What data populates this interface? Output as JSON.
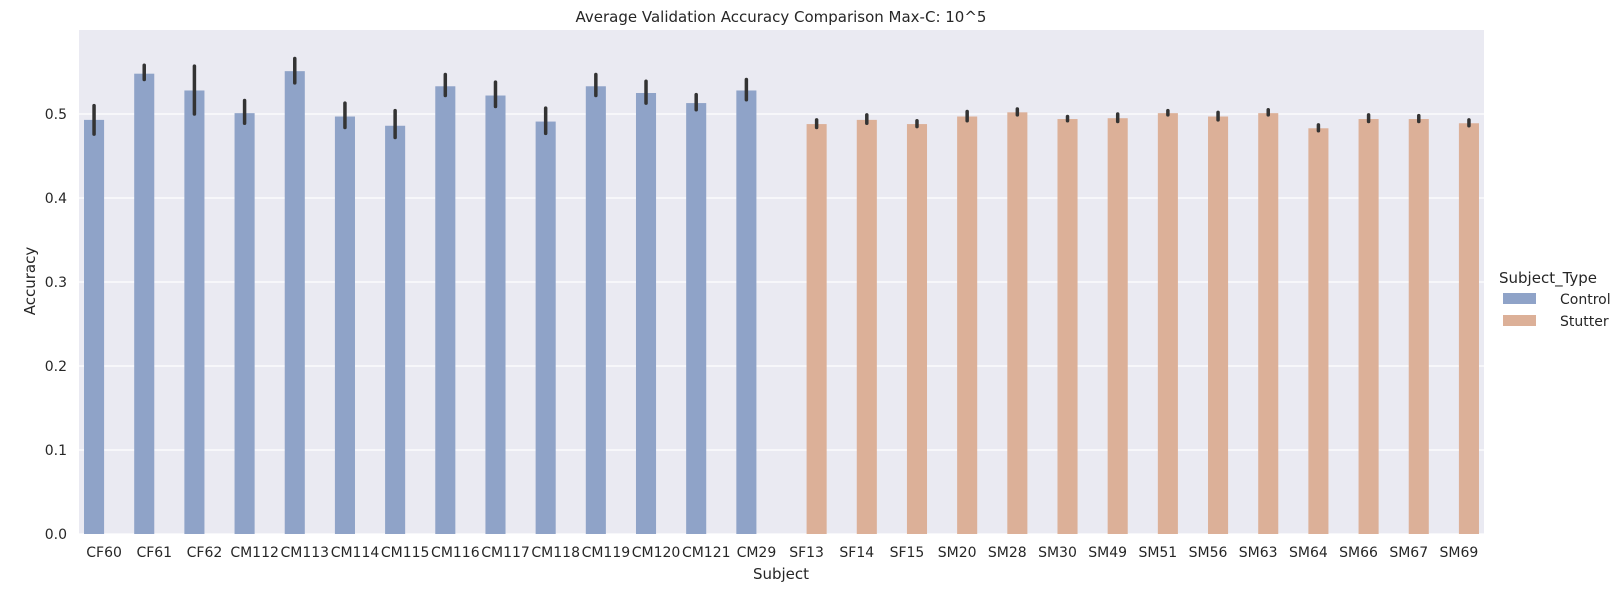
{
  "chart_data": {
    "type": "bar",
    "title": "Average Validation Accuracy Comparison Max-C: 10^5",
    "xlabel": "Subject",
    "ylabel": "Accuracy",
    "ylim": [
      0,
      0.6
    ],
    "yticks": [
      "0.0",
      "0.1",
      "0.2",
      "0.3",
      "0.4",
      "0.5"
    ],
    "grid": true,
    "legend_position": "right",
    "legend_title": "Subject_Type",
    "categories": [
      "CF60",
      "CF61",
      "CF62",
      "CM112",
      "CM113",
      "CM114",
      "CM115",
      "CM116",
      "CM117",
      "CM118",
      "CM119",
      "CM120",
      "CM121",
      "CM29",
      "SF13",
      "SF14",
      "SF15",
      "SM20",
      "SM28",
      "SM30",
      "SM49",
      "SM51",
      "SM56",
      "SM63",
      "SM64",
      "SM66",
      "SM67",
      "SM69"
    ],
    "series": [
      {
        "name": "Control",
        "color": "#8fa3c8",
        "values": [
          0.493,
          0.548,
          0.528,
          0.501,
          0.551,
          0.497,
          0.486,
          0.533,
          0.522,
          0.491,
          0.533,
          0.525,
          0.513,
          0.528,
          null,
          null,
          null,
          null,
          null,
          null,
          null,
          null,
          null,
          null,
          null,
          null,
          null,
          null
        ],
        "error_low": [
          0.476,
          0.541,
          0.5,
          0.489,
          0.537,
          0.484,
          0.472,
          0.522,
          0.509,
          0.477,
          0.522,
          0.513,
          0.505,
          0.517,
          null,
          null,
          null,
          null,
          null,
          null,
          null,
          null,
          null,
          null,
          null,
          null,
          null,
          null
        ],
        "error_high": [
          0.51,
          0.558,
          0.557,
          0.516,
          0.566,
          0.513,
          0.504,
          0.547,
          0.538,
          0.507,
          0.547,
          0.539,
          0.523,
          0.541,
          null,
          null,
          null,
          null,
          null,
          null,
          null,
          null,
          null,
          null,
          null,
          null,
          null,
          null
        ]
      },
      {
        "name": "Stutter",
        "color": "#dcb098",
        "values": [
          null,
          null,
          null,
          null,
          null,
          null,
          null,
          null,
          null,
          null,
          null,
          null,
          null,
          null,
          0.488,
          0.493,
          0.488,
          0.497,
          0.502,
          0.494,
          0.495,
          0.501,
          0.497,
          0.501,
          0.483,
          0.494,
          0.494,
          0.489
        ],
        "error_low": [
          null,
          null,
          null,
          null,
          null,
          null,
          null,
          null,
          null,
          null,
          null,
          null,
          null,
          null,
          0.484,
          0.489,
          0.485,
          0.492,
          0.499,
          0.492,
          0.491,
          0.499,
          0.493,
          0.499,
          0.48,
          0.491,
          0.491,
          0.486
        ],
        "error_high": [
          null,
          null,
          null,
          null,
          null,
          null,
          null,
          null,
          null,
          null,
          null,
          null,
          null,
          null,
          0.493,
          0.499,
          0.492,
          0.503,
          0.506,
          0.497,
          0.5,
          0.504,
          0.502,
          0.505,
          0.487,
          0.499,
          0.498,
          0.493
        ]
      }
    ]
  },
  "style": {
    "plot_background": "#eaeaf2",
    "grid_color": "#ffffff",
    "error_bar_color": "#333333",
    "text_color": "#262626"
  }
}
